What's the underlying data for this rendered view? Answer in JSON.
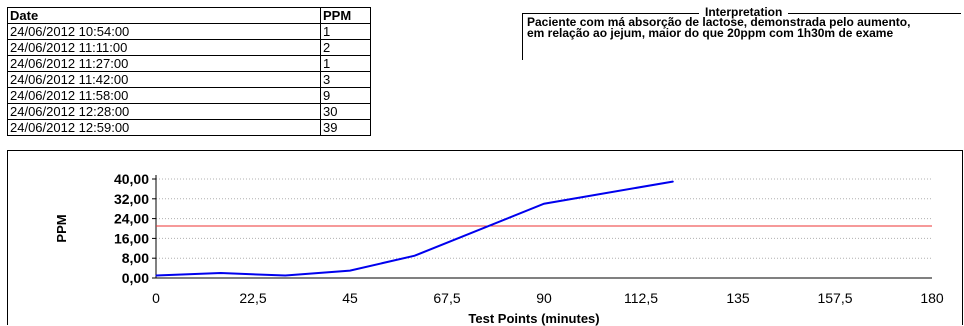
{
  "table": {
    "headers": [
      "Date",
      "PPM"
    ],
    "rows": [
      [
        "24/06/2012 10:54:00",
        "1"
      ],
      [
        "24/06/2012 11:11:00",
        "2"
      ],
      [
        "24/06/2012 11:27:00",
        "1"
      ],
      [
        "24/06/2012 11:42:00",
        "3"
      ],
      [
        "24/06/2012 11:58:00",
        "9"
      ],
      [
        "24/06/2012 12:28:00",
        "30"
      ],
      [
        "24/06/2012 12:59:00",
        "39"
      ]
    ]
  },
  "interpretation": {
    "title": "Interpretation",
    "text": "Paciente com má absorção de lactose, demonstrada pelo aumento, em relação ao jejum, maior do que 20ppm com 1h30m de exame"
  },
  "chart_data": {
    "type": "line",
    "xlabel": "Test Points (minutes)",
    "ylabel": "PPM",
    "xlim": [
      0,
      180
    ],
    "ylim": [
      0,
      40
    ],
    "x_ticks": [
      "0",
      "22,5",
      "45",
      "67,5",
      "90",
      "112,5",
      "135",
      "157,5",
      "180"
    ],
    "x_tick_values": [
      0,
      22.5,
      45,
      67.5,
      90,
      112.5,
      135,
      157.5,
      180
    ],
    "y_ticks": [
      "0,00",
      "8,00",
      "16,00",
      "24,00",
      "32,00",
      "40,00"
    ],
    "y_tick_values": [
      0,
      8,
      16,
      24,
      32,
      40
    ],
    "series": [
      {
        "x": [
          0,
          15,
          30,
          45,
          60,
          90,
          120
        ],
        "y": [
          1,
          2,
          1,
          3,
          9,
          30,
          39
        ],
        "color": "#0000ee"
      }
    ],
    "threshold": {
      "y": 21,
      "color": "#ee3333"
    },
    "grid": "horizontal dotted"
  }
}
